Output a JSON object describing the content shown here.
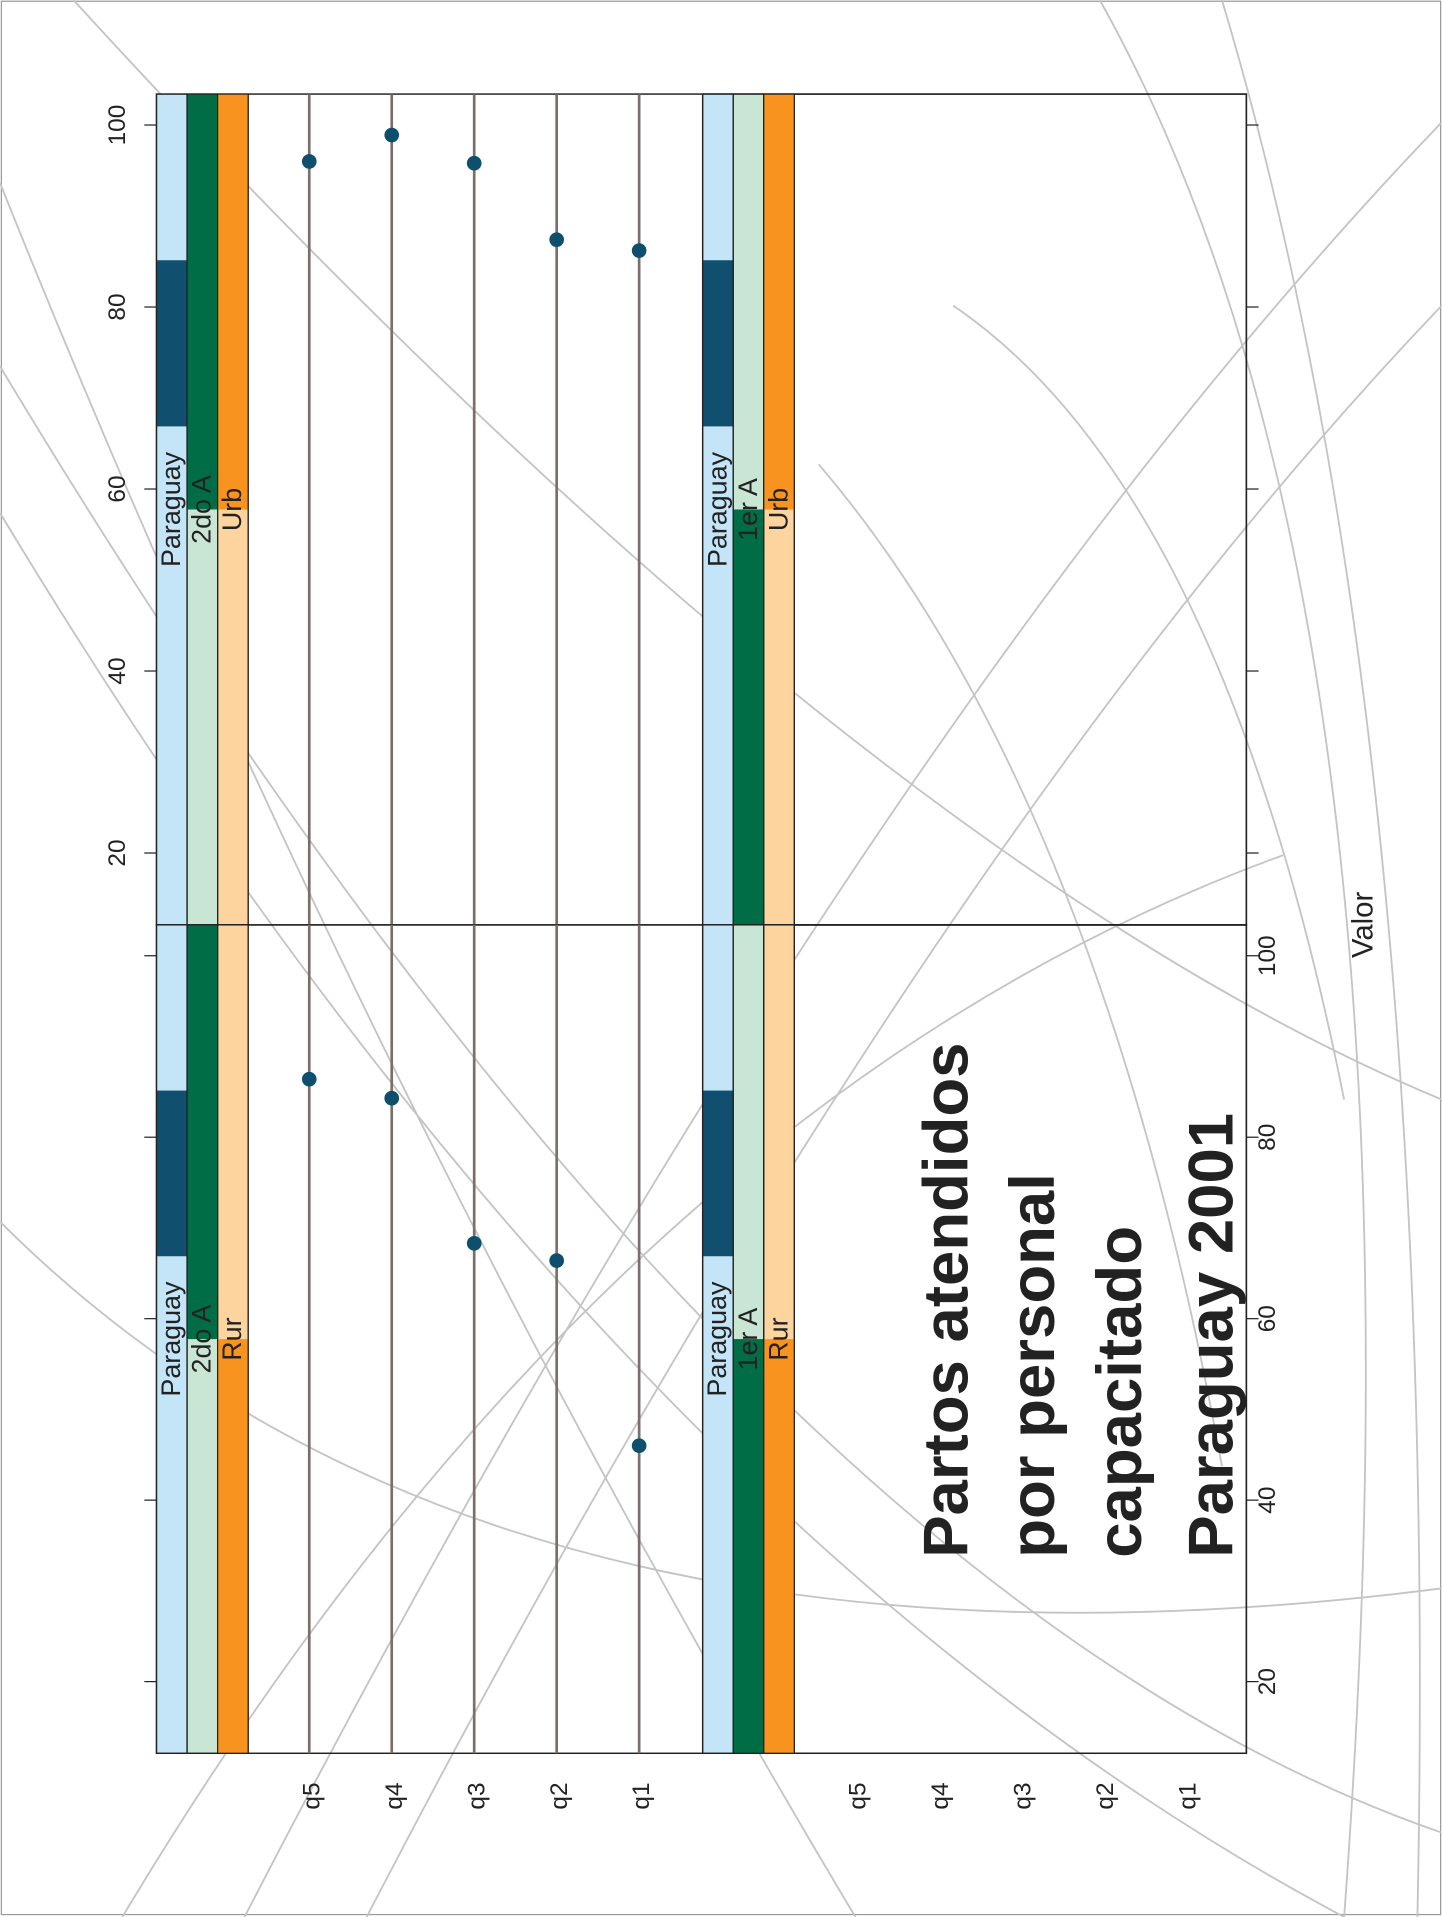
{
  "chart_data": {
    "type": "dot",
    "title": [
      "Partos atendidos",
      "por personal",
      "capacitado"
    ],
    "subtitle": "Paraguay 2001",
    "x_label": "Valor",
    "categories": [
      "q1",
      "q2",
      "q3",
      "q4",
      "q5"
    ],
    "xlim": [
      12.1,
      103.4
    ],
    "xticks": [
      20,
      40,
      60,
      80,
      100
    ],
    "color": "#0e4f6e",
    "panels": [
      {
        "strips": [
          "Paraguay",
          "2do A",
          "Urb"
        ],
        "values": [
          86.2,
          87.4,
          95.8,
          98.9,
          96.0
        ]
      },
      {
        "strips": [
          "Paraguay",
          "2do A",
          "Rur"
        ],
        "values": [
          46.0,
          66.4,
          68.3,
          84.3,
          86.4
        ]
      },
      {
        "strips": [
          "Paraguay",
          "1er A",
          "Urb"
        ],
        "values": [
          null,
          null,
          null,
          null,
          null
        ]
      },
      {
        "strips": [
          "Paraguay",
          "1er A",
          "Rur"
        ],
        "values": [
          null,
          null,
          null,
          null,
          null
        ]
      }
    ]
  }
}
